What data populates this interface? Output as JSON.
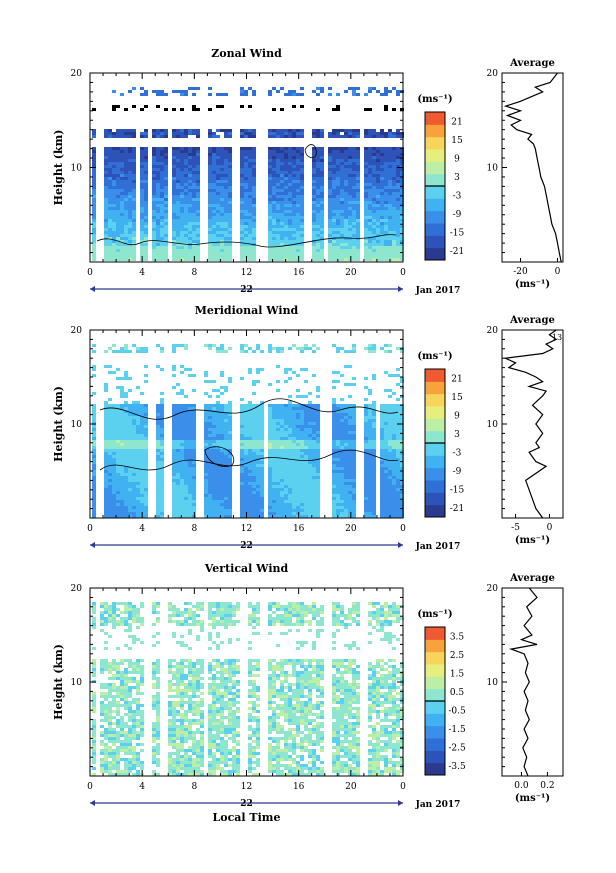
{
  "chart_data": [
    {
      "type": "heatmap",
      "title": "Zonal Wind",
      "ylabel": "Height (km)",
      "yticks": [
        "20",
        "10"
      ],
      "xticks": [
        "0",
        "4",
        "8",
        "12",
        "16",
        "20",
        "0"
      ],
      "date_label": "22",
      "date_right": "Jan 2017",
      "colorbar": {
        "unit": "(ms⁻¹)",
        "ticks": [
          "21",
          "15",
          "9",
          "3",
          "-3",
          "-9",
          "-15",
          "-21"
        ],
        "range": [
          -24,
          24
        ]
      },
      "average": {
        "title": "Average",
        "xlabel": "(ms⁻¹)",
        "xticks": [
          "-20",
          "0"
        ],
        "xlim": [
          -30,
          3
        ],
        "yticks": [
          "20",
          "10"
        ],
        "profile": [
          [
            0,
            2
          ],
          [
            1,
            1
          ],
          [
            2,
            0
          ],
          [
            3,
            -1
          ],
          [
            4,
            -3
          ],
          [
            5,
            -4
          ],
          [
            6,
            -5
          ],
          [
            7,
            -6
          ],
          [
            8,
            -7
          ],
          [
            9,
            -9
          ],
          [
            10,
            -10
          ],
          [
            11,
            -11
          ],
          [
            12,
            -12
          ],
          [
            12.5,
            -13
          ],
          [
            13,
            -16
          ],
          [
            13.5,
            -14
          ],
          [
            14,
            -22
          ],
          [
            14.5,
            -25
          ],
          [
            15,
            -20
          ],
          [
            15.5,
            -27
          ],
          [
            16,
            -20
          ],
          [
            16.5,
            -28
          ],
          [
            17,
            -20
          ],
          [
            17.5,
            -14
          ],
          [
            18,
            -8
          ],
          [
            18.5,
            -12
          ],
          [
            19,
            -4
          ],
          [
            19.5,
            -2
          ],
          [
            20,
            0
          ]
        ]
      }
    },
    {
      "type": "heatmap",
      "title": "Meridional Wind",
      "ylabel": "Height (km)",
      "yticks": [
        "20",
        "10"
      ],
      "xticks": [
        "0",
        "4",
        "8",
        "12",
        "16",
        "20",
        "0"
      ],
      "date_label": "22",
      "date_right": "Jan 2017",
      "colorbar": {
        "unit": "(ms⁻¹)",
        "ticks": [
          "21",
          "15",
          "9",
          "3",
          "-3",
          "-9",
          "-15",
          "-21"
        ],
        "range": [
          -24,
          24
        ]
      },
      "average": {
        "title": "Average",
        "xlabel": "(ms⁻¹)",
        "xticks": [
          "-5",
          "0"
        ],
        "xlim": [
          -7,
          2
        ],
        "annotation": "13",
        "profile": [
          [
            0,
            -1
          ],
          [
            1,
            -2
          ],
          [
            2,
            -2.5
          ],
          [
            3,
            -3
          ],
          [
            4,
            -3.5
          ],
          [
            5,
            -1.5
          ],
          [
            5.5,
            -0.5
          ],
          [
            6,
            -2
          ],
          [
            7,
            -3
          ],
          [
            7.5,
            -1.5
          ],
          [
            8,
            -2
          ],
          [
            9,
            -1
          ],
          [
            10,
            -2
          ],
          [
            11,
            -1
          ],
          [
            12,
            -2.5
          ],
          [
            13,
            -1
          ],
          [
            13.5,
            -0.5
          ],
          [
            14,
            -3
          ],
          [
            14.5,
            -1
          ],
          [
            15,
            -2
          ],
          [
            15.5,
            -3.5
          ],
          [
            16,
            -6
          ],
          [
            16.5,
            -5
          ],
          [
            17,
            -6.5
          ],
          [
            17.5,
            -1
          ],
          [
            18,
            0.5
          ],
          [
            18.5,
            -0.5
          ],
          [
            19,
            1
          ],
          [
            19.5,
            0
          ],
          [
            20,
            1
          ]
        ]
      }
    },
    {
      "type": "heatmap",
      "title": "Vertical Wind",
      "ylabel": "Height (km)",
      "xlabel": "Local Time",
      "yticks": [
        "20",
        "10"
      ],
      "xticks": [
        "0",
        "4",
        "8",
        "12",
        "16",
        "20",
        "0"
      ],
      "date_label": "22",
      "date_right": "Jan 2017",
      "colorbar": {
        "unit": "(ms⁻¹)",
        "ticks": [
          "3.5",
          "2.5",
          "1.5",
          "0.5",
          "-0.5",
          "-1.5",
          "-2.5",
          "-3.5"
        ],
        "range": [
          -4,
          4
        ]
      },
      "average": {
        "title": "Average",
        "xlabel": "(ms⁻¹)",
        "xticks": [
          "0.0",
          "0.2"
        ],
        "xlim": [
          -0.15,
          0.32
        ],
        "profile": [
          [
            0,
            0.05
          ],
          [
            1,
            0.02
          ],
          [
            2,
            0.04
          ],
          [
            3,
            0.01
          ],
          [
            4,
            0.05
          ],
          [
            5,
            0.02
          ],
          [
            6,
            0.06
          ],
          [
            7,
            0.03
          ],
          [
            8,
            0.05
          ],
          [
            9,
            0.02
          ],
          [
            10,
            0.06
          ],
          [
            11,
            0.03
          ],
          [
            12,
            0.05
          ],
          [
            13,
            0.02
          ],
          [
            13.5,
            -0.08
          ],
          [
            14,
            0.12
          ],
          [
            14.5,
            0.0
          ],
          [
            15,
            0.08
          ],
          [
            16,
            0.02
          ],
          [
            17,
            0.08
          ],
          [
            18,
            0.04
          ],
          [
            19,
            0.12
          ],
          [
            20,
            0.06
          ]
        ]
      }
    }
  ]
}
